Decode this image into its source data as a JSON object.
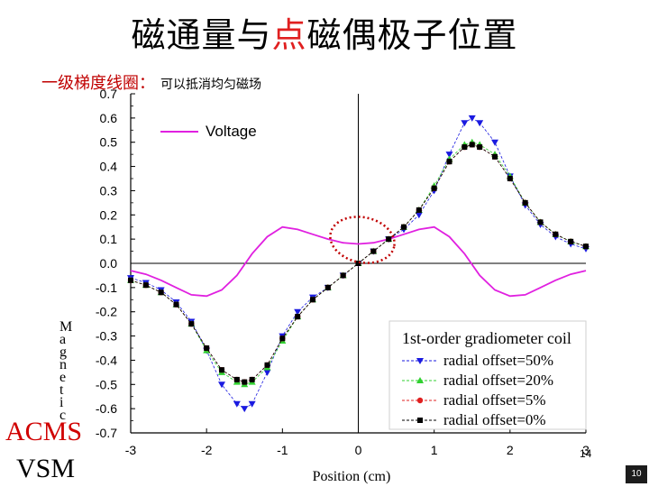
{
  "slide": {
    "title_part1": "磁通量与",
    "title_highlight": "点",
    "title_part2": "磁偶极子位置",
    "subtitle": "一级梯度线圈：",
    "subtitle_note": "可以抵消均匀磁场",
    "label_acms": "ACMS",
    "label_vsm": "VSM",
    "ylabel_vertical": "M a g n e t i c",
    "slide_number": "10",
    "slide_number_overlap": "14"
  },
  "chart_data": {
    "type": "line",
    "xlabel": "Position (cm)",
    "ylabel": "",
    "xlim": [
      -3,
      3
    ],
    "ylim": [
      -0.7,
      0.7
    ],
    "x_ticks": [
      "-3",
      "-2",
      "-1",
      "0",
      "1",
      "2",
      "3"
    ],
    "y_ticks": [
      "0.7",
      "0.6",
      "0.5",
      "0.4",
      "0.3",
      "0.2",
      "0.1",
      "0.0",
      "-0.1",
      "-0.2",
      "-0.3",
      "-0.4",
      "-0.5",
      "-0.6",
      "-0.7"
    ],
    "legend_title": "1st-order gradiometer coil",
    "legend_placement": "bottom-right",
    "voltage_legend": "Voltage",
    "series": [
      {
        "name": "Voltage",
        "color": "#e020e0",
        "marker": "none",
        "x": [
          -3.0,
          -2.8,
          -2.6,
          -2.4,
          -2.2,
          -2.0,
          -1.8,
          -1.6,
          -1.4,
          -1.2,
          -1.0,
          -0.8,
          -0.6,
          -0.4,
          -0.2,
          0.0,
          0.2,
          0.4,
          0.6,
          0.8,
          1.0,
          1.2,
          1.4,
          1.6,
          1.8,
          2.0,
          2.2,
          2.4,
          2.6,
          2.8,
          3.0
        ],
        "y": [
          -0.03,
          -0.045,
          -0.07,
          -0.1,
          -0.13,
          -0.135,
          -0.11,
          -0.05,
          0.04,
          0.11,
          0.15,
          0.14,
          0.12,
          0.1,
          0.085,
          0.08,
          0.085,
          0.1,
          0.12,
          0.14,
          0.15,
          0.11,
          0.04,
          -0.05,
          -0.11,
          -0.135,
          -0.13,
          -0.1,
          -0.07,
          -0.045,
          -0.03
        ]
      },
      {
        "name": "radial offset=50%",
        "color": "#1a1ae0",
        "marker": "triangle-down",
        "x": [
          -3.0,
          -2.8,
          -2.6,
          -2.4,
          -2.2,
          -2.0,
          -1.8,
          -1.6,
          -1.5,
          -1.4,
          -1.2,
          -1.0,
          -0.8,
          -0.6,
          -0.4,
          -0.2,
          0.0,
          0.2,
          0.4,
          0.6,
          0.8,
          1.0,
          1.2,
          1.4,
          1.5,
          1.6,
          1.8,
          2.0,
          2.2,
          2.4,
          2.6,
          2.8,
          3.0
        ],
        "y": [
          -0.06,
          -0.08,
          -0.11,
          -0.16,
          -0.24,
          -0.36,
          -0.5,
          -0.58,
          -0.6,
          -0.58,
          -0.45,
          -0.3,
          -0.2,
          -0.14,
          -0.1,
          -0.05,
          0.0,
          0.05,
          0.1,
          0.14,
          0.2,
          0.3,
          0.45,
          0.58,
          0.6,
          0.58,
          0.5,
          0.36,
          0.24,
          0.16,
          0.11,
          0.08,
          0.06
        ]
      },
      {
        "name": "radial offset=20%",
        "color": "#30d030",
        "marker": "triangle-up",
        "x": [
          -3.0,
          -2.8,
          -2.6,
          -2.4,
          -2.2,
          -2.0,
          -1.8,
          -1.6,
          -1.5,
          -1.4,
          -1.2,
          -1.0,
          -0.8,
          -0.6,
          -0.4,
          -0.2,
          0.0,
          0.2,
          0.4,
          0.6,
          0.8,
          1.0,
          1.2,
          1.4,
          1.5,
          1.6,
          1.8,
          2.0,
          2.2,
          2.4,
          2.6,
          2.8,
          3.0
        ],
        "y": [
          -0.07,
          -0.09,
          -0.12,
          -0.17,
          -0.25,
          -0.36,
          -0.45,
          -0.49,
          -0.5,
          -0.49,
          -0.43,
          -0.32,
          -0.22,
          -0.15,
          -0.1,
          -0.05,
          0.0,
          0.05,
          0.1,
          0.15,
          0.22,
          0.32,
          0.43,
          0.49,
          0.5,
          0.49,
          0.45,
          0.36,
          0.25,
          0.17,
          0.12,
          0.09,
          0.07
        ]
      },
      {
        "name": "radial offset=5%",
        "color": "#e02020",
        "marker": "circle",
        "x": [
          -3.0,
          -2.8,
          -2.6,
          -2.4,
          -2.2,
          -2.0,
          -1.8,
          -1.6,
          -1.5,
          -1.4,
          -1.2,
          -1.0,
          -0.8,
          -0.6,
          -0.4,
          -0.2,
          0.0,
          0.2,
          0.4,
          0.6,
          0.8,
          1.0,
          1.2,
          1.4,
          1.5,
          1.6,
          1.8,
          2.0,
          2.2,
          2.4,
          2.6,
          2.8,
          3.0
        ],
        "y": [
          -0.07,
          -0.09,
          -0.12,
          -0.17,
          -0.25,
          -0.35,
          -0.44,
          -0.48,
          -0.49,
          -0.48,
          -0.42,
          -0.31,
          -0.22,
          -0.15,
          -0.1,
          -0.05,
          0.0,
          0.05,
          0.1,
          0.15,
          0.22,
          0.31,
          0.42,
          0.48,
          0.49,
          0.48,
          0.44,
          0.35,
          0.25,
          0.17,
          0.12,
          0.09,
          0.07
        ]
      },
      {
        "name": "radial offset=0%",
        "color": "#000000",
        "marker": "square",
        "x": [
          -3.0,
          -2.8,
          -2.6,
          -2.4,
          -2.2,
          -2.0,
          -1.8,
          -1.6,
          -1.5,
          -1.4,
          -1.2,
          -1.0,
          -0.8,
          -0.6,
          -0.4,
          -0.2,
          0.0,
          0.2,
          0.4,
          0.6,
          0.8,
          1.0,
          1.2,
          1.4,
          1.5,
          1.6,
          1.8,
          2.0,
          2.2,
          2.4,
          2.6,
          2.8,
          3.0
        ],
        "y": [
          -0.07,
          -0.09,
          -0.12,
          -0.17,
          -0.25,
          -0.35,
          -0.44,
          -0.48,
          -0.49,
          -0.48,
          -0.42,
          -0.31,
          -0.22,
          -0.15,
          -0.1,
          -0.05,
          0.0,
          0.05,
          0.1,
          0.15,
          0.22,
          0.31,
          0.42,
          0.48,
          0.49,
          0.48,
          0.44,
          0.35,
          0.25,
          0.17,
          0.12,
          0.09,
          0.07
        ]
      }
    ]
  }
}
